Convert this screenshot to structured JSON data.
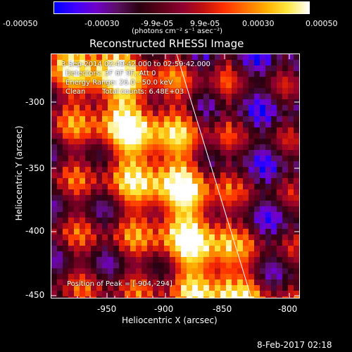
{
  "colorbar": {
    "ticks": [
      "-0.00050",
      "-0.00030",
      "-9.9e-05",
      "9.9e-05",
      "0.00030",
      "0.00050"
    ],
    "units": "(photons cm⁻² s⁻¹ asec⁻²)",
    "stops": [
      "#0000ff",
      "#3f00ff",
      "#7000c8",
      "#5a1060",
      "#2a0010",
      "#5a0018",
      "#8c0030",
      "#c01010",
      "#ff3000",
      "#ff7000",
      "#ffb000",
      "#ffe840",
      "#ffffff"
    ]
  },
  "image": {
    "title": "Reconstructed RHESSI Image",
    "time_range": "3-Sep-2014 02:49:42.000 to 02:59:42.000",
    "detectors": "Detectors: 3F 6F 9F, Att 0",
    "energy_range": "Energy Range: 26.0 - 50.0 keV",
    "clean": "Clean",
    "total_counts": "Total counts: 6.48E+03",
    "peak_position": "Position of Peak = [-904,-294]",
    "x_axis_label": "Heliocentric X (arcsec)",
    "y_axis_label": "Heliocentric Y (arcsec)",
    "x_ticks": [
      "-950",
      "-900",
      "-850",
      "-800"
    ],
    "y_ticks": [
      "-300",
      "-350",
      "-400",
      "-450"
    ],
    "footer_timestamp": "8-Feb-2017 02:18"
  }
}
